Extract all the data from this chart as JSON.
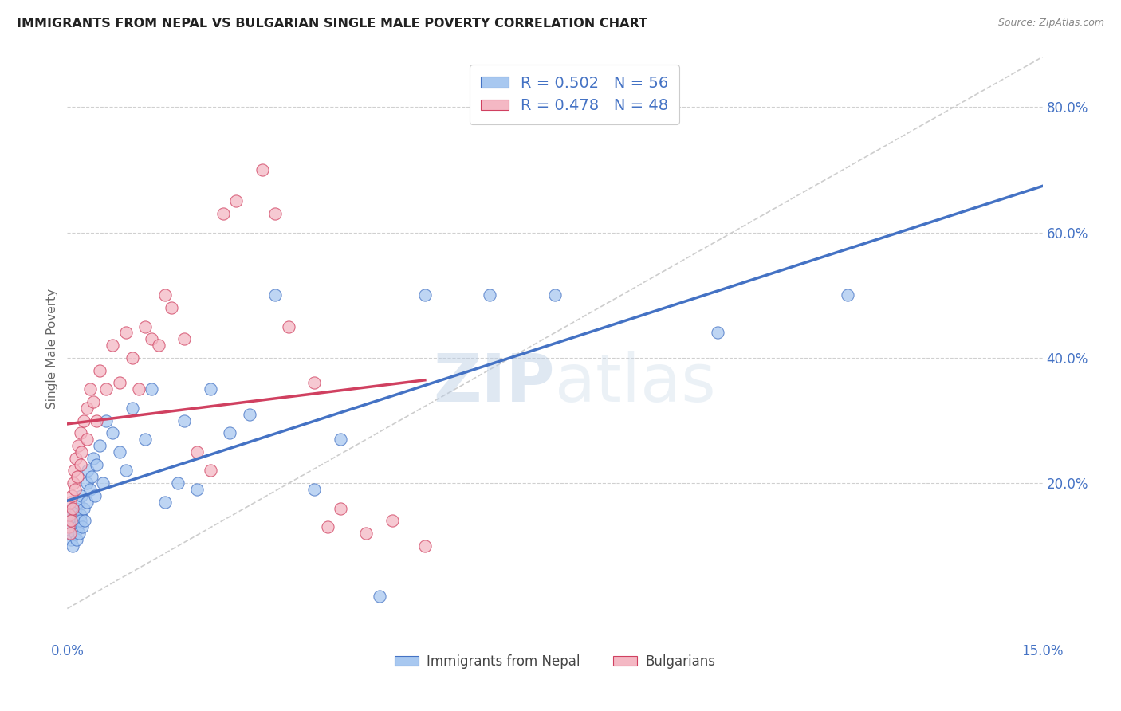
{
  "title": "IMMIGRANTS FROM NEPAL VS BULGARIAN SINGLE MALE POVERTY CORRELATION CHART",
  "source": "Source: ZipAtlas.com",
  "ylabel": "Single Male Poverty",
  "yticks": [
    "20.0%",
    "40.0%",
    "60.0%",
    "80.0%"
  ],
  "ytick_vals": [
    0.2,
    0.4,
    0.6,
    0.8
  ],
  "xlim": [
    0.0,
    0.15
  ],
  "ylim": [
    -0.05,
    0.88
  ],
  "legend_label1": "Immigrants from Nepal",
  "legend_label2": "Bulgarians",
  "r1": "0.502",
  "n1": "56",
  "r2": "0.478",
  "n2": "48",
  "color_nepal": "#a8c8f0",
  "color_bulgaria": "#f4b8c4",
  "color_line_nepal": "#4472c4",
  "color_line_bulgaria": "#d04060",
  "color_diagonal": "#c8c8c8",
  "watermark_zip": "ZIP",
  "watermark_atlas": "atlas",
  "nepal_x": [
    0.0002,
    0.0003,
    0.0004,
    0.0005,
    0.0006,
    0.0007,
    0.0008,
    0.0009,
    0.001,
    0.001,
    0.0012,
    0.0013,
    0.0014,
    0.0015,
    0.0016,
    0.0017,
    0.0018,
    0.002,
    0.002,
    0.0022,
    0.0023,
    0.0025,
    0.0027,
    0.003,
    0.003,
    0.0032,
    0.0035,
    0.0038,
    0.004,
    0.0042,
    0.0045,
    0.005,
    0.0055,
    0.006,
    0.007,
    0.008,
    0.009,
    0.01,
    0.012,
    0.013,
    0.015,
    0.017,
    0.018,
    0.02,
    0.022,
    0.025,
    0.028,
    0.032,
    0.038,
    0.042,
    0.048,
    0.055,
    0.065,
    0.075,
    0.1,
    0.12
  ],
  "nepal_y": [
    0.14,
    0.12,
    0.15,
    0.13,
    0.11,
    0.16,
    0.1,
    0.14,
    0.13,
    0.15,
    0.12,
    0.16,
    0.11,
    0.14,
    0.13,
    0.17,
    0.12,
    0.15,
    0.14,
    0.18,
    0.13,
    0.16,
    0.14,
    0.2,
    0.17,
    0.22,
    0.19,
    0.21,
    0.24,
    0.18,
    0.23,
    0.26,
    0.2,
    0.3,
    0.28,
    0.25,
    0.22,
    0.32,
    0.27,
    0.35,
    0.17,
    0.2,
    0.3,
    0.19,
    0.35,
    0.28,
    0.31,
    0.5,
    0.19,
    0.27,
    0.02,
    0.5,
    0.5,
    0.5,
    0.44,
    0.5
  ],
  "bulgaria_x": [
    0.0002,
    0.0003,
    0.0004,
    0.0005,
    0.0006,
    0.0007,
    0.0008,
    0.0009,
    0.001,
    0.0012,
    0.0013,
    0.0015,
    0.0017,
    0.002,
    0.002,
    0.0022,
    0.0025,
    0.003,
    0.003,
    0.0035,
    0.004,
    0.0045,
    0.005,
    0.006,
    0.007,
    0.008,
    0.009,
    0.01,
    0.011,
    0.012,
    0.013,
    0.014,
    0.015,
    0.016,
    0.018,
    0.02,
    0.022,
    0.024,
    0.026,
    0.03,
    0.032,
    0.034,
    0.038,
    0.04,
    0.042,
    0.046,
    0.05,
    0.055
  ],
  "bulgaria_y": [
    0.13,
    0.15,
    0.12,
    0.17,
    0.14,
    0.18,
    0.16,
    0.2,
    0.22,
    0.19,
    0.24,
    0.21,
    0.26,
    0.23,
    0.28,
    0.25,
    0.3,
    0.27,
    0.32,
    0.35,
    0.33,
    0.3,
    0.38,
    0.35,
    0.42,
    0.36,
    0.44,
    0.4,
    0.35,
    0.45,
    0.43,
    0.42,
    0.5,
    0.48,
    0.43,
    0.25,
    0.22,
    0.63,
    0.65,
    0.7,
    0.63,
    0.45,
    0.36,
    0.13,
    0.16,
    0.12,
    0.14,
    0.1
  ]
}
